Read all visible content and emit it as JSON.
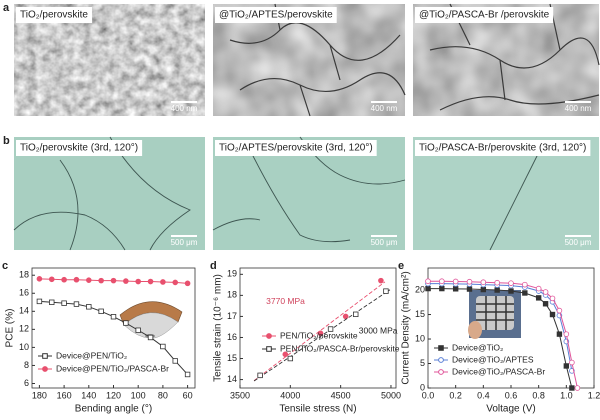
{
  "figure": {
    "panel_a": {
      "letter": "a",
      "captions": [
        "TiO₂/perovskite",
        "@TiO₂/APTES/perovskite",
        "@TiO₂/PASCA-Br /perovskite"
      ],
      "scale_bars": [
        "400 nm",
        "400 nm",
        "400 nm"
      ]
    },
    "panel_b": {
      "letter": "b",
      "captions": [
        "TiO₂/perovskite (3rd, 120°)",
        "TiO₂/APTES/perovskite (3rd, 120°)",
        "TiO₂/PASCA-Br/perovskite (3rd, 120°)"
      ],
      "scale_bars": [
        "500 μm",
        "500 μm",
        "500 μm"
      ]
    }
  },
  "chart_data": [
    {
      "type": "line",
      "letter": "c",
      "x_label": "Bending angle (°)",
      "y_label": "PCE (%)",
      "x": [
        180,
        170,
        160,
        150,
        140,
        130,
        120,
        110,
        100,
        90,
        80,
        70,
        60
      ],
      "xlim": [
        186,
        54
      ],
      "xticks": [
        180,
        160,
        140,
        120,
        100,
        80,
        60
      ],
      "ylim": [
        5.5,
        18.8
      ],
      "yticks": [
        6,
        8,
        10,
        12,
        14,
        16,
        18
      ],
      "series": [
        {
          "name": "Device@PEN/TiO₂",
          "color": "#333333",
          "marker": "square",
          "filled": false,
          "values": [
            15.1,
            15.0,
            14.9,
            14.8,
            14.5,
            14.0,
            13.4,
            12.7,
            11.9,
            11.1,
            10.1,
            8.5,
            7.0
          ]
        },
        {
          "name": "Device@PEN/TiO₂/PASCA-Br",
          "color": "#e8506e",
          "marker": "circle",
          "filled": true,
          "values": [
            17.6,
            17.55,
            17.5,
            17.5,
            17.45,
            17.4,
            17.4,
            17.35,
            17.3,
            17.3,
            17.25,
            17.2,
            17.1
          ]
        }
      ]
    },
    {
      "type": "scatter",
      "letter": "d",
      "x_label": "Tensile stress (N)",
      "y_label": "Tensile strain (10⁻⁶ mm)",
      "xlim": [
        3500,
        5050
      ],
      "xticks": [
        3500,
        4000,
        4500,
        5000
      ],
      "ylim": [
        13.6,
        19.3
      ],
      "yticks": [
        14,
        15,
        16,
        17,
        18,
        19
      ],
      "annotations": [
        {
          "text": "3770 MPa",
          "color": "#d0435c"
        },
        {
          "text": "3000 MPa",
          "color": "#222222"
        }
      ],
      "series": [
        {
          "name": "PEN/TiO₂/perovskite",
          "color": "#e8506e",
          "marker": "circle",
          "filled": true,
          "x": [
            3700,
            3950,
            4300,
            4550,
            4900
          ],
          "values": [
            14.2,
            15.2,
            16.2,
            17.0,
            18.7
          ]
        },
        {
          "name": "PEN/TiO₂/PASCA-Br/perovskite",
          "color": "#333333",
          "marker": "square",
          "filled": false,
          "x": [
            3700,
            4000,
            4400,
            4650,
            4950
          ],
          "values": [
            14.2,
            15.0,
            16.4,
            17.1,
            18.2
          ]
        }
      ]
    },
    {
      "type": "line",
      "letter": "e",
      "x_label": "Voltage (V)",
      "y_label": "Current Density (mA/cm²)",
      "x": [
        0,
        0.1,
        0.2,
        0.3,
        0.4,
        0.5,
        0.6,
        0.7,
        0.8,
        0.85,
        0.9,
        0.95,
        1.0,
        1.04,
        1.08
      ],
      "xlim": [
        0,
        1.2
      ],
      "xticks": [
        {
          "value": 0,
          "label": "0.0"
        },
        0.2,
        0.4,
        0.6,
        0.8,
        {
          "value": 1,
          "label": "1.0"
        },
        1.2
      ],
      "ylim": [
        0,
        24.5
      ],
      "yticks": [
        0,
        5,
        10,
        15,
        20
      ],
      "series": [
        {
          "name": "Device@TiO₂",
          "color": "#333333",
          "marker": "square",
          "filled": true,
          "values": [
            20.3,
            20.3,
            20.25,
            20.2,
            20.1,
            20.0,
            19.8,
            19.4,
            18.4,
            17.2,
            15.0,
            11.0,
            4.5,
            0,
            null
          ]
        },
        {
          "name": "Device@TiO₂/APTES",
          "color": "#5a7fd6",
          "marker": "circle",
          "filled": false,
          "values": [
            21.3,
            21.3,
            21.25,
            21.2,
            21.1,
            21.0,
            20.9,
            20.6,
            19.8,
            19.0,
            17.6,
            14.8,
            9.5,
            3.5,
            null
          ]
        },
        {
          "name": "Device@TiO₂/PASCA-Br",
          "color": "#e0559a",
          "marker": "circle",
          "filled": false,
          "values": [
            21.8,
            21.8,
            21.75,
            21.7,
            21.6,
            21.5,
            21.4,
            21.1,
            20.3,
            19.6,
            18.3,
            15.8,
            11.0,
            5.2,
            0
          ]
        }
      ]
    }
  ]
}
